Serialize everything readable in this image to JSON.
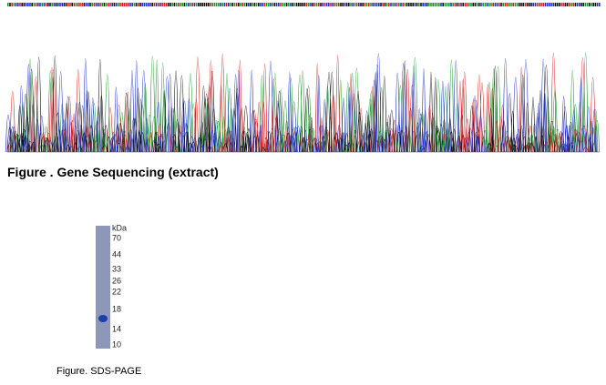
{
  "figures": [
    {
      "caption": "Figure . Gene Sequencing (extract)"
    },
    {
      "caption": "Figure. SDS-PAGE",
      "unit": "kDa",
      "markers": [
        "70",
        "44",
        "33",
        "26",
        "22",
        "18",
        "14",
        "10"
      ]
    }
  ]
}
